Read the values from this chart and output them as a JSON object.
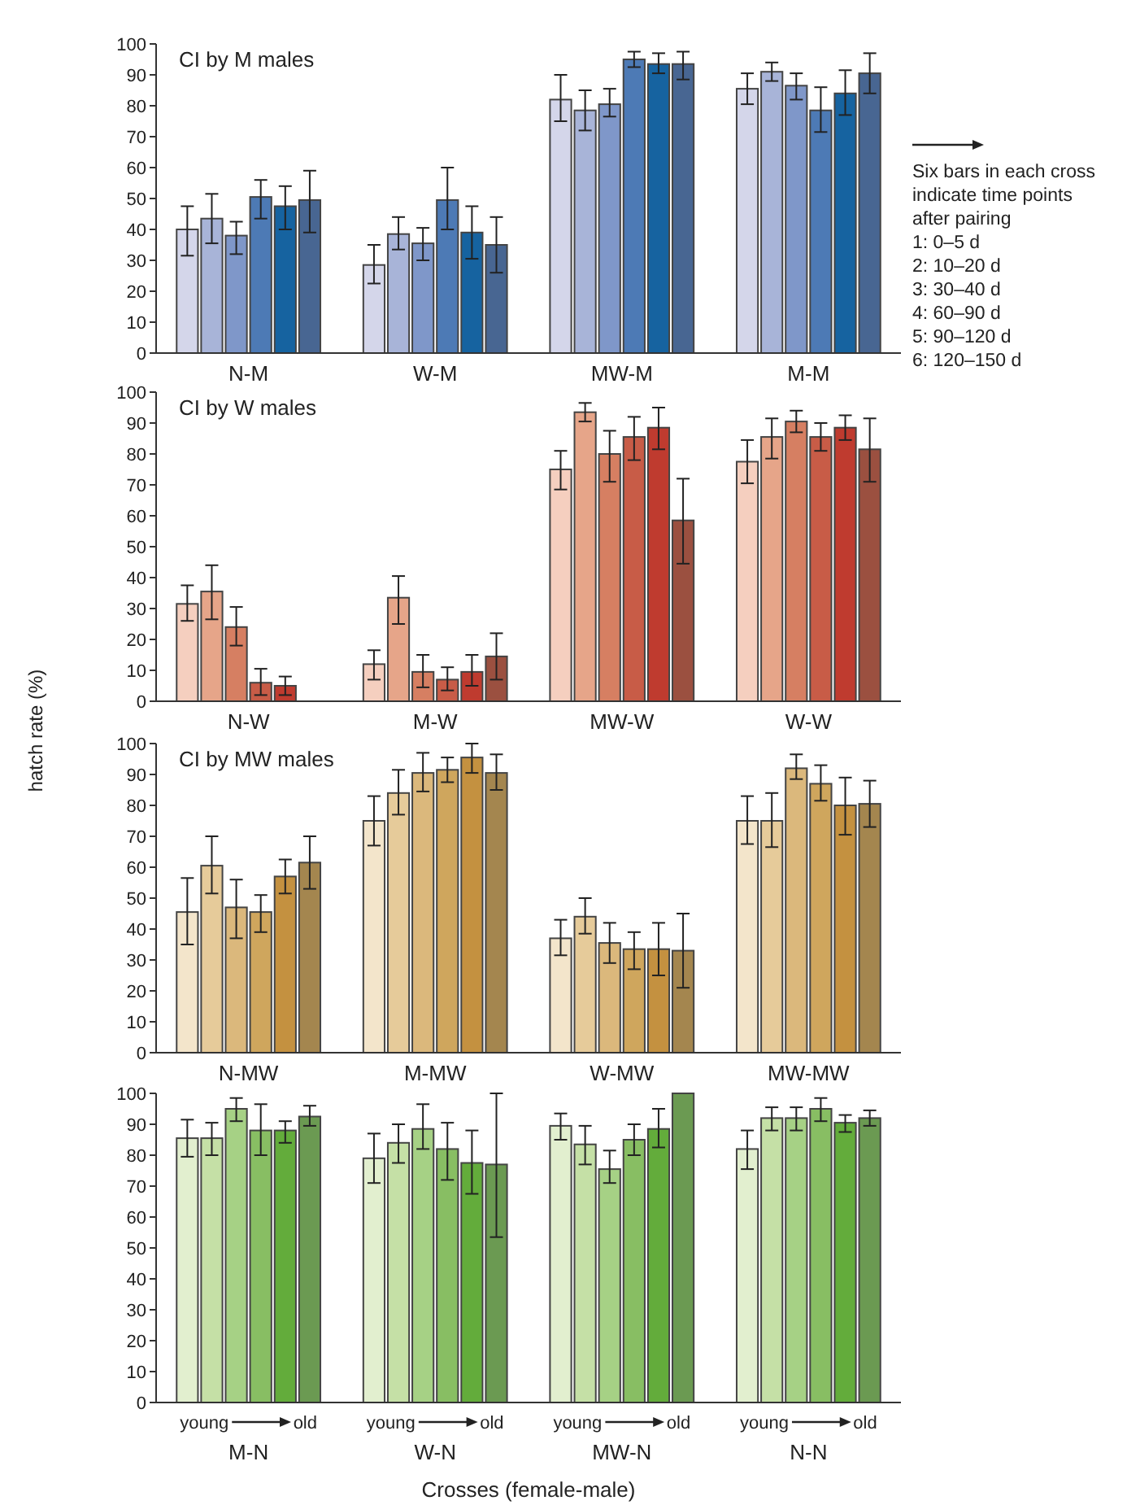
{
  "chart_data": [
    {
      "type": "bar",
      "title": "CI by M males",
      "categories": [
        "N-M",
        "W-M",
        "MW-M",
        "M-M"
      ],
      "ylim": [
        0,
        100
      ],
      "yticks": [
        0,
        10,
        20,
        30,
        40,
        50,
        60,
        70,
        80,
        90,
        100
      ],
      "annotations": [
        "Six bars in each cross indicate time points after pairing",
        "1: 0–5 d",
        "2: 10–20 d",
        "3: 30–40 d",
        "4: 60–90 d",
        "5: 90–120 d",
        "6: 120–150 d"
      ],
      "series": [
        {
          "color": "#d4d6ea",
          "values": [
            40,
            28.5,
            82,
            85.5
          ],
          "errors": [
            [
              31.5,
              47.5
            ],
            [
              22.5,
              35
            ],
            [
              75,
              90
            ],
            [
              80.5,
              90.5
            ]
          ]
        },
        {
          "color": "#a8b4d8",
          "values": [
            43.5,
            38.5,
            78.5,
            91
          ],
          "errors": [
            [
              35.5,
              51.5
            ],
            [
              33.5,
              44
            ],
            [
              72,
              85
            ],
            [
              88,
              94
            ]
          ]
        },
        {
          "color": "#7f97c9",
          "values": [
            38,
            35.5,
            80.5,
            86.5
          ],
          "errors": [
            [
              32,
              42.5
            ],
            [
              30,
              40.5
            ],
            [
              76.5,
              85.5
            ],
            [
              82,
              90.5
            ]
          ]
        },
        {
          "color": "#4d7ab5",
          "values": [
            50.5,
            49.5,
            95,
            78.5
          ],
          "errors": [
            [
              43.5,
              56
            ],
            [
              40,
              60
            ],
            [
              92.5,
              97.5
            ],
            [
              71.5,
              86
            ]
          ]
        },
        {
          "color": "#1663a0",
          "values": [
            47.5,
            39,
            93.5,
            84
          ],
          "errors": [
            [
              40,
              54
            ],
            [
              30.5,
              47.5
            ],
            [
              90.5,
              97
            ],
            [
              77,
              91.5
            ]
          ]
        },
        {
          "color": "#486692",
          "values": [
            49.5,
            35,
            93.5,
            90.5
          ],
          "errors": [
            [
              39,
              59
            ],
            [
              26,
              44
            ],
            [
              88.5,
              97.5
            ],
            [
              84,
              97
            ]
          ]
        }
      ]
    },
    {
      "type": "bar",
      "title": "CI by W males",
      "categories": [
        "N-W",
        "M-W",
        "MW-W",
        "W-W"
      ],
      "ylim": [
        0,
        100
      ],
      "yticks": [
        0,
        10,
        20,
        30,
        40,
        50,
        60,
        70,
        80,
        90,
        100
      ],
      "series": [
        {
          "color": "#f5cfbf",
          "values": [
            31.5,
            12,
            75,
            77.5
          ],
          "errors": [
            [
              26,
              37.5
            ],
            [
              7,
              16.5
            ],
            [
              68.5,
              81
            ],
            [
              70.5,
              84.5
            ]
          ]
        },
        {
          "color": "#e6a589",
          "values": [
            35.5,
            33.5,
            93.5,
            85.5
          ],
          "errors": [
            [
              26.5,
              44
            ],
            [
              25,
              40.5
            ],
            [
              90.5,
              96.5
            ],
            [
              78.5,
              91.5
            ]
          ]
        },
        {
          "color": "#d67f62",
          "values": [
            24,
            9.5,
            80,
            90.5
          ],
          "errors": [
            [
              18,
              30.5
            ],
            [
              4.5,
              15
            ],
            [
              71,
              87.5
            ],
            [
              87,
              94
            ]
          ]
        },
        {
          "color": "#c85c47",
          "values": [
            6,
            7,
            85.5,
            85.5
          ],
          "errors": [
            [
              2,
              10.5
            ],
            [
              3.5,
              11
            ],
            [
              78,
              92
            ],
            [
              81,
              90
            ]
          ]
        },
        {
          "color": "#bf3b2f",
          "values": [
            5,
            9.5,
            88.5,
            88.5
          ],
          "errors": [
            [
              2,
              8
            ],
            [
              5,
              15
            ],
            [
              81.5,
              95
            ],
            [
              84.5,
              92.5
            ]
          ]
        },
        {
          "color": "#9b5040",
          "values": [
            null,
            14.5,
            58.5,
            81.5
          ],
          "errors": [
            null,
            [
              7,
              22
            ],
            [
              44.5,
              72
            ],
            [
              71,
              91.5
            ]
          ]
        }
      ]
    },
    {
      "type": "bar",
      "title": "CI by MW males",
      "ylabel": "hatch rate (%)",
      "categories": [
        "N-MW",
        "M-MW",
        "W-MW",
        "MW-MW"
      ],
      "ylim": [
        0,
        100
      ],
      "yticks": [
        0,
        10,
        20,
        30,
        40,
        50,
        60,
        70,
        80,
        90,
        100
      ],
      "series": [
        {
          "color": "#f3e5cb",
          "values": [
            45.5,
            75,
            37,
            75
          ],
          "errors": [
            [
              35,
              56.5
            ],
            [
              67,
              83
            ],
            [
              31.5,
              43
            ],
            [
              67.5,
              83
            ]
          ]
        },
        {
          "color": "#e6cb9a",
          "values": [
            60.5,
            84,
            44,
            75
          ],
          "errors": [
            [
              51.5,
              70
            ],
            [
              77,
              91.5
            ],
            [
              38.5,
              50
            ],
            [
              66.5,
              84
            ]
          ]
        },
        {
          "color": "#dbb87c",
          "values": [
            47,
            90.5,
            35.5,
            92
          ],
          "errors": [
            [
              37,
              56
            ],
            [
              84.5,
              97
            ],
            [
              29,
              42
            ],
            [
              88.5,
              96.5
            ]
          ]
        },
        {
          "color": "#cfa65d",
          "values": [
            45.5,
            91.5,
            33.5,
            87
          ],
          "errors": [
            [
              39,
              51
            ],
            [
              87.5,
              95.5
            ],
            [
              27,
              39
            ],
            [
              81.5,
              93
            ]
          ]
        },
        {
          "color": "#c49140",
          "values": [
            57,
            95.5,
            33.5,
            80
          ],
          "errors": [
            [
              51.5,
              62.5
            ],
            [
              90.5,
              100
            ],
            [
              25,
              42
            ],
            [
              70.5,
              89
            ]
          ]
        },
        {
          "color": "#a4864f",
          "values": [
            61.5,
            90.5,
            33,
            80.5
          ],
          "errors": [
            [
              53,
              70
            ],
            [
              85,
              96.5
            ],
            [
              21,
              45
            ],
            [
              73,
              88
            ]
          ]
        }
      ]
    },
    {
      "type": "bar",
      "xlabel": "Crosses (female-male)",
      "categories": [
        "M-N",
        "W-N",
        "MW-N",
        "N-N"
      ],
      "ylim": [
        0,
        100
      ],
      "yticks": [
        0,
        10,
        20,
        30,
        40,
        50,
        60,
        70,
        80,
        90,
        100
      ],
      "annotations": [
        "young",
        "old",
        "young",
        "old",
        "young",
        "old",
        "young",
        "old"
      ],
      "series": [
        {
          "color": "#e2efcf",
          "values": [
            85.5,
            79,
            89.5,
            82
          ],
          "errors": [
            [
              79.5,
              91.5
            ],
            [
              71,
              87
            ],
            [
              85,
              93.5
            ],
            [
              75.5,
              88
            ]
          ]
        },
        {
          "color": "#c5e0a6",
          "values": [
            85.5,
            84,
            83.5,
            92
          ],
          "errors": [
            [
              80,
              90.5
            ],
            [
              77.5,
              90
            ],
            [
              77,
              89.5
            ],
            [
              88,
              95.5
            ]
          ]
        },
        {
          "color": "#a6d185",
          "values": [
            95,
            88.5,
            75.5,
            92
          ],
          "errors": [
            [
              91,
              98.5
            ],
            [
              82,
              96.5
            ],
            [
              71,
              81.5
            ],
            [
              88,
              95.5
            ]
          ]
        },
        {
          "color": "#88be63",
          "values": [
            88,
            82,
            85,
            95
          ],
          "errors": [
            [
              80,
              96.5
            ],
            [
              72,
              90.5
            ],
            [
              80,
              90
            ],
            [
              91,
              98.5
            ]
          ]
        },
        {
          "color": "#63ac3b",
          "values": [
            88,
            77.5,
            88.5,
            90.5
          ],
          "errors": [
            [
              84,
              91
            ],
            [
              67.5,
              88
            ],
            [
              82.5,
              95
            ],
            [
              87.5,
              93
            ]
          ]
        },
        {
          "color": "#6b9a52",
          "values": [
            92.5,
            77,
            100,
            92
          ],
          "errors": [
            [
              89.5,
              96
            ],
            [
              53.5,
              100
            ],
            null,
            [
              89.5,
              94.5
            ]
          ]
        }
      ]
    }
  ]
}
